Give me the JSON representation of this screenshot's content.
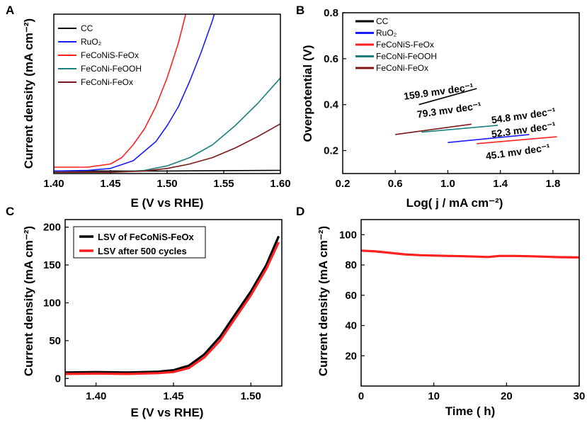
{
  "chart_data": [
    {
      "panel": "A",
      "type": "line",
      "xlabel": "E (V vs RHE)",
      "ylabel": "Current density (mA cm⁻²)",
      "xlim": [
        1.4,
        1.6
      ],
      "ylim": [
        0,
        250
      ],
      "xticks": [
        "1.40",
        "1.45",
        "1.50",
        "1.55",
        "1.60"
      ],
      "legend_position": "top-left",
      "series": [
        {
          "name": "CC",
          "color": "#000000",
          "x": [
            1.4,
            1.45,
            1.5,
            1.55,
            1.6
          ],
          "values": [
            4,
            4,
            4,
            4.5,
            5
          ]
        },
        {
          "name": "RuO₂",
          "color": "#1a1aff",
          "x": [
            1.4,
            1.43,
            1.45,
            1.47,
            1.49,
            1.5,
            1.51,
            1.52,
            1.53,
            1.54,
            1.545
          ],
          "values": [
            4,
            5,
            8,
            20,
            50,
            75,
            105,
            145,
            190,
            240,
            270
          ]
        },
        {
          "name": "FeCoNiS-FeOx",
          "color": "#ff2020",
          "x": [
            1.4,
            1.43,
            1.45,
            1.46,
            1.47,
            1.48,
            1.49,
            1.5,
            1.51,
            1.515,
            1.52
          ],
          "values": [
            10,
            10,
            15,
            25,
            45,
            70,
            105,
            150,
            205,
            240,
            275
          ]
        },
        {
          "name": "FeCoNi-FeOOH",
          "color": "#1a8080",
          "x": [
            1.4,
            1.45,
            1.48,
            1.5,
            1.52,
            1.54,
            1.56,
            1.58,
            1.6
          ],
          "values": [
            2,
            2,
            5,
            12,
            25,
            45,
            75,
            110,
            150
          ]
        },
        {
          "name": "FeCoNi-FeOx",
          "color": "#7a1818",
          "x": [
            1.4,
            1.45,
            1.48,
            1.5,
            1.52,
            1.54,
            1.56,
            1.58,
            1.6
          ],
          "values": [
            2,
            2,
            4,
            8,
            15,
            25,
            40,
            58,
            78
          ]
        }
      ]
    },
    {
      "panel": "B",
      "type": "line",
      "xlabel": "Log( j / mA cm⁻²)",
      "ylabel": "Overpotential (V)",
      "xlim": [
        0.2,
        2.0
      ],
      "ylim": [
        0.1,
        0.8
      ],
      "xticks": [
        "0.2",
        "0.6",
        "1.0",
        "1.4",
        "1.8"
      ],
      "yticks": [
        "0.2",
        "0.4",
        "0.6",
        "0.8"
      ],
      "legend_position": "top-left",
      "series": [
        {
          "name": "CC",
          "color": "#000000",
          "x": [
            0.78,
            1.22
          ],
          "values": [
            0.4,
            0.47
          ],
          "annotation": "159.9 mv dec⁻¹"
        },
        {
          "name": "RuO₂",
          "color": "#1a1aff",
          "x": [
            1.0,
            1.62
          ],
          "values": [
            0.235,
            0.27
          ],
          "annotation": "52.3 mv dec⁻¹"
        },
        {
          "name": "FeCoNiS-FeOx",
          "color": "#ff2020",
          "x": [
            1.22,
            1.83
          ],
          "values": [
            0.23,
            0.26
          ],
          "annotation": "45.1 mv dec⁻¹"
        },
        {
          "name": "FeCoNi-FeOOH",
          "color": "#1a8080",
          "x": [
            0.8,
            1.38
          ],
          "values": [
            0.28,
            0.31
          ],
          "annotation": "54.8 mv dec⁻¹"
        },
        {
          "name": "FeCoNi-FeOx",
          "color": "#7a1818",
          "x": [
            0.6,
            1.18
          ],
          "values": [
            0.27,
            0.315
          ],
          "annotation": "79.3 mv dec⁻¹"
        }
      ]
    },
    {
      "panel": "C",
      "type": "line",
      "xlabel": "E (V vs RHE)",
      "ylabel": "Current density (mA cm⁻²)",
      "xlim": [
        1.38,
        1.52
      ],
      "ylim": [
        -10,
        210
      ],
      "xticks": [
        "1.40",
        "1.45",
        "1.50"
      ],
      "yticks": [
        "0",
        "50",
        "100",
        "150",
        "200"
      ],
      "legend_position": "top-left",
      "series": [
        {
          "name": "LSV of FeCoNiS-FeOx",
          "color": "#000000",
          "x": [
            1.38,
            1.4,
            1.42,
            1.44,
            1.45,
            1.46,
            1.47,
            1.48,
            1.49,
            1.5,
            1.51,
            1.518
          ],
          "values": [
            8,
            8.5,
            8,
            9,
            11,
            17,
            32,
            55,
            85,
            115,
            150,
            188
          ]
        },
        {
          "name": "LSV after 500 cycles",
          "color": "#ff2020",
          "x": [
            1.38,
            1.4,
            1.42,
            1.44,
            1.45,
            1.46,
            1.47,
            1.48,
            1.49,
            1.5,
            1.51,
            1.518
          ],
          "values": [
            6,
            6.5,
            6,
            7,
            8.5,
            14,
            28,
            50,
            80,
            110,
            145,
            180
          ]
        }
      ]
    },
    {
      "panel": "D",
      "type": "line",
      "xlabel": "Time ( h)",
      "ylabel": "Current density (mA cm⁻²)",
      "xlim": [
        0,
        30
      ],
      "ylim": [
        0,
        110
      ],
      "xticks": [
        "0",
        "10",
        "20",
        "30"
      ],
      "yticks": [
        "20",
        "40",
        "60",
        "80",
        "100"
      ],
      "series": [
        {
          "name": "FeCoNiS-FeOx",
          "color": "#ff2020",
          "x": [
            0,
            2,
            4,
            6,
            8,
            10,
            12,
            14,
            16,
            17.5,
            19,
            21,
            23,
            25,
            27,
            30
          ],
          "values": [
            89.5,
            89,
            88,
            87,
            86.5,
            86.2,
            86,
            85.8,
            85.5,
            85.3,
            86,
            86,
            85.8,
            85.5,
            85.2,
            85
          ]
        }
      ]
    }
  ]
}
